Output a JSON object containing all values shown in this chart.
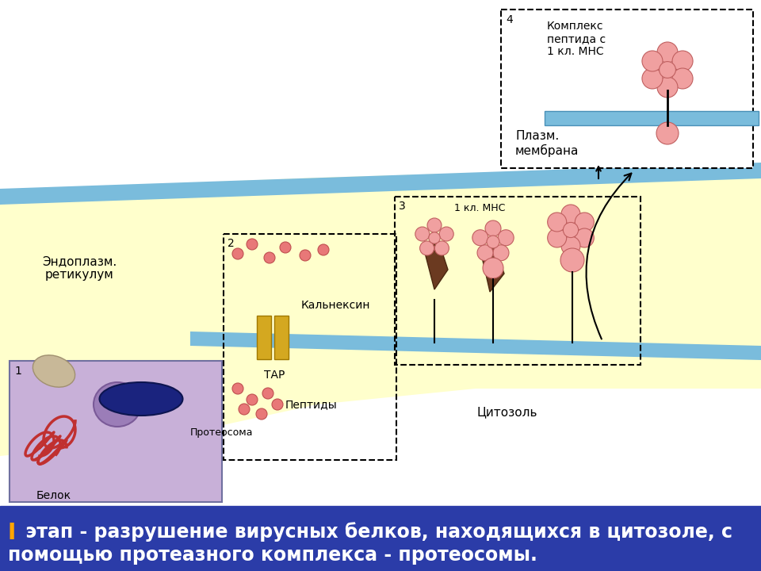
{
  "bg_color": "#ffffff",
  "bottom_bar_color": "#2b3ca8",
  "bottom_bar_text_I": "I",
  "bottom_bar_text_rest": " этап - разрушение вирусных белков, находящихся в цитозоле, с",
  "bottom_bar_line2": "помощью протеазного комплекса - протеосомы.",
  "bottom_bar_text_color": "#ffffff",
  "bottom_bar_I_color": "#ffa500",
  "cell_fill": "#ffffcc",
  "cell_membrane_color": "#7abcdc",
  "er_label": "Эндоплазм.\nретикулум",
  "cytosol_label": "Цитозоль",
  "box1_fill": "#c8b0d8",
  "label_belok": "Белок",
  "label_proteosoma": "Протеосома",
  "label_tap": "ТАР",
  "label_peptidy": "Пептиды",
  "label_calnexin": "Кальнексин",
  "label_1kl_mnc": "1 кл. МНС",
  "label_kompleks": "Комплекс\nпептида с\n1 кл. МНС",
  "label_plazm": "Плазм.\nмембрана",
  "num1": "1",
  "num2": "2",
  "num3": "3",
  "num4": "4",
  "pink_color": "#e88888",
  "dark_pink": "#c05050",
  "dark_navy": "#1a237e",
  "golden": "#d4a000",
  "brown_dark": "#5d3a1a",
  "salmon": "#f4a0a0"
}
